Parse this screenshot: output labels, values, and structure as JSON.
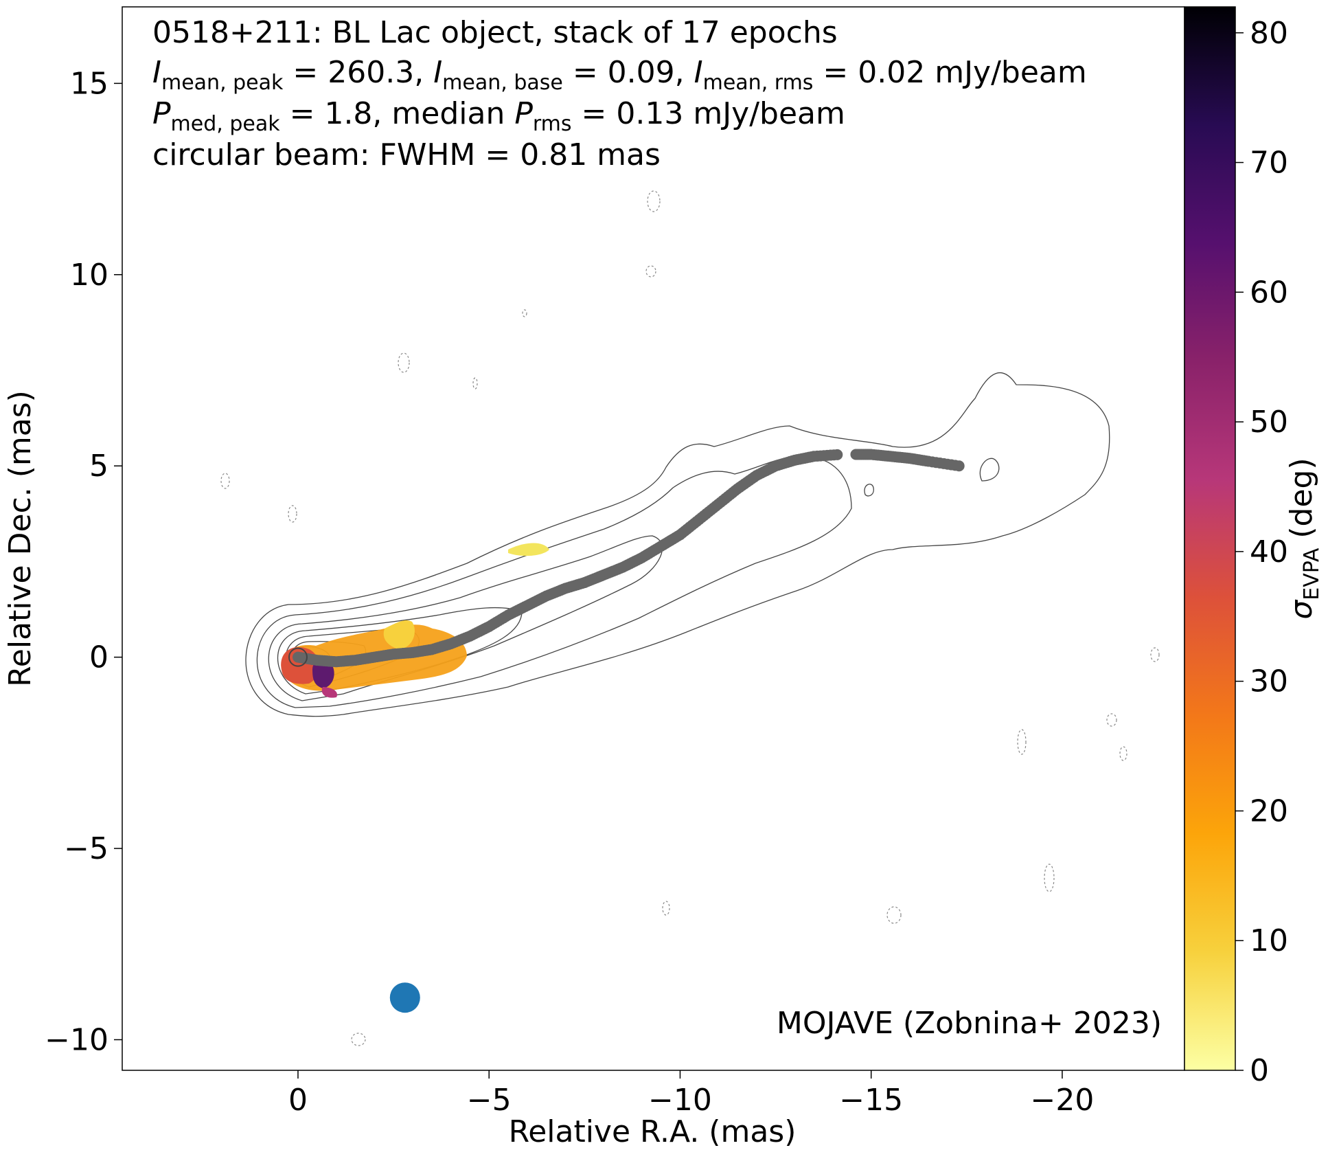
{
  "chart_data": {
    "type": "contour",
    "annotations": {
      "title_line": "0518+211: BL Lac object, stack of 17 epochs",
      "line2": {
        "i1_sym": "I",
        "i1_sub": "mean, peak",
        "i1_val": " = 260.3, ",
        "i2_sym": "I",
        "i2_sub": "mean, base",
        "i2_val": " = 0.09, ",
        "i3_sym": "I",
        "i3_sub": "mean, rms",
        "i3_val": " = 0.02 mJy/beam"
      },
      "line3": {
        "p1_sym": "P",
        "p1_sub": "med, peak",
        "p1_val": " = 1.8, median ",
        "p2_sym": "P",
        "p2_sub": "rms",
        "p2_val": " = 0.13 mJy/beam"
      },
      "line4": "circular beam: FWHM = 0.81 mas",
      "credit": "MOJAVE (Zobnina+ 2023)"
    },
    "xlabel": "Relative R.A. (mas)",
    "ylabel": "Relative Dec. (mas)",
    "xlim": [
      4.6,
      -23.2
    ],
    "ylim": [
      -10.8,
      17.0
    ],
    "xticks": [
      0,
      -5,
      -10,
      -15,
      -20
    ],
    "xtick_labels": [
      "0",
      "−5",
      "−10",
      "−15",
      "−20"
    ],
    "yticks": [
      -10,
      -5,
      0,
      5,
      10,
      15
    ],
    "ytick_labels": [
      "−10",
      "−5",
      "0",
      "5",
      "10",
      "15"
    ],
    "colorbar": {
      "label_sym": "σ",
      "label_sub": "EVPA",
      "label_unit": " (deg)",
      "range": [
        0,
        82
      ],
      "ticks": [
        0,
        10,
        20,
        30,
        40,
        50,
        60,
        70,
        80
      ],
      "tick_labels": [
        "0",
        "10",
        "20",
        "30",
        "40",
        "50",
        "60",
        "70",
        "80"
      ],
      "colormap": "inferno_r",
      "stops": [
        "#fcffa4",
        "#f7d13d",
        "#fca50a",
        "#f37819",
        "#dd513a",
        "#b73779",
        "#8a226a",
        "#56106e",
        "#280b53",
        "#000004"
      ]
    },
    "ridgeline": {
      "color": "#666666",
      "x": [
        0,
        -0.5,
        -1,
        -1.5,
        -2,
        -2.5,
        -3,
        -3.5,
        -4,
        -4.5,
        -5,
        -5.5,
        -6,
        -6.5,
        -7,
        -7.5,
        -8,
        -8.5,
        -9,
        -9.5,
        -10,
        -10.5,
        -11,
        -11.5,
        -12,
        -12.5,
        -13,
        -13.5,
        -14.2,
        -14.6,
        -15,
        -15.5,
        -16,
        -16.5,
        -17.3
      ],
      "y": [
        0,
        -0.08,
        -0.12,
        -0.08,
        0.0,
        0.08,
        0.12,
        0.2,
        0.35,
        0.55,
        0.8,
        1.1,
        1.35,
        1.6,
        1.8,
        1.95,
        2.15,
        2.35,
        2.6,
        2.9,
        3.2,
        3.6,
        4.0,
        4.4,
        4.75,
        5.0,
        5.15,
        5.25,
        5.3,
        5.3,
        5.3,
        5.25,
        5.2,
        5.12,
        5.0
      ]
    },
    "beam": {
      "x": -2.8,
      "y": -8.9,
      "fwhm": 0.81,
      "color": "#1f77b4"
    }
  }
}
